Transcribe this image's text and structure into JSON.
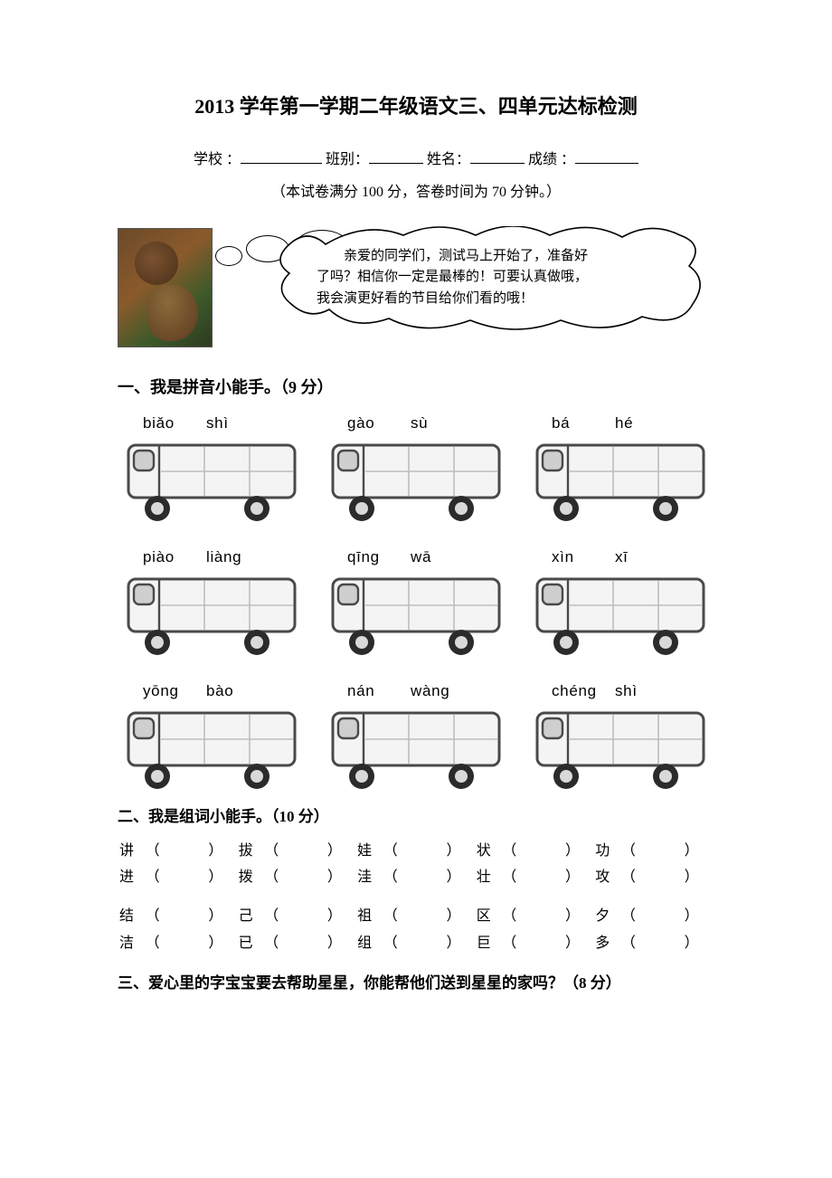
{
  "title": "2013 学年第一学期二年级语文三、四单元达标检测",
  "info": {
    "school_label": "学校  ：",
    "class_label": " 班别：",
    "name_label": " 姓名：",
    "score_label": " 成绩  ："
  },
  "note": "（本试卷满分 100 分，答卷时间为 70 分钟。）",
  "speech": {
    "line1": "　　亲爱的同学们，测试马上开始了，准备好",
    "line2": "了吗？相信你一定是最棒的！可要认真做哦，",
    "line3": "我会演更好看的节目给你们看的哦！"
  },
  "sections": {
    "s1": "一、我是拼音小能手。（9 分）",
    "s2": "二、我是组词小能手。（10 分）",
    "s3": "三、爱心里的字宝宝要去帮助星星，你能帮他们送到星星的家吗？（8 分）"
  },
  "pinyin_rows": [
    [
      {
        "a": "biǎo",
        "b": "shì"
      },
      {
        "a": "ɡào",
        "b": "sù"
      },
      {
        "a": "bá",
        "b": "hé"
      }
    ],
    [
      {
        "a": "piào",
        "b": "liànɡ"
      },
      {
        "a": "qīnɡ",
        "b": "wā"
      },
      {
        "a": "xìn",
        "b": "xī"
      }
    ],
    [
      {
        "a": "yōnɡ",
        "b": "bào"
      },
      {
        "a": "nán",
        "b": "wànɡ"
      },
      {
        "a": "chénɡ",
        "b": "shì"
      }
    ]
  ],
  "word_pairs": {
    "group1": [
      [
        "讲",
        "拔",
        "娃",
        "状",
        "功"
      ],
      [
        "进",
        "拨",
        "洼",
        "壮",
        "攻"
      ]
    ],
    "group2": [
      [
        "结",
        "己",
        "祖",
        "区",
        "夕"
      ],
      [
        "洁",
        "已",
        "组",
        "巨",
        "多"
      ]
    ]
  },
  "bus_style": {
    "width": 192,
    "height": 92,
    "body_fill": "#f4f4f4",
    "stroke": "#4a4a4a",
    "grid_stroke": "#bdbdbd",
    "wheel_outer": "#2b2b2b",
    "wheel_inner": "#d9d9d9"
  },
  "colors": {
    "text": "#000000",
    "background": "#ffffff"
  }
}
